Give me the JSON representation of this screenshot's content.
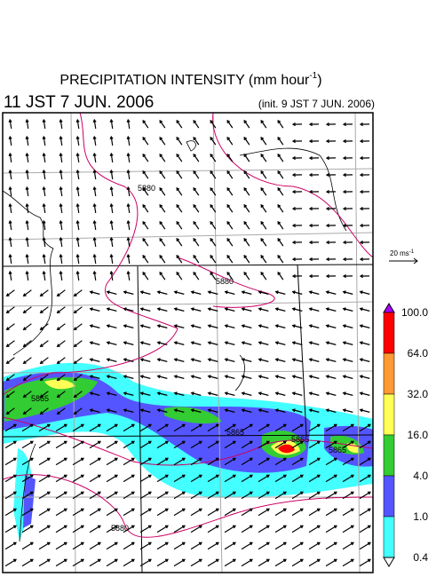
{
  "header": {
    "title": "PRECIPITATION INTENSITY (mm hour",
    "title_sup": "-1",
    "title_end": ")",
    "valid_time": "11 JST 7 JUN. 2006",
    "init_time": "(init. 9 JST 7 JUN. 2006)"
  },
  "wind_scale": {
    "label": "20 ms",
    "sup": "-1"
  },
  "colorbar": {
    "labels": [
      "100.0",
      "64.0",
      "32.0",
      "16.0",
      "4.0",
      "1.0",
      "0.4"
    ],
    "colors": [
      "#ff0000",
      "#ff9933",
      "#ffff55",
      "#33cc33",
      "#5555ff",
      "#44ffff"
    ],
    "over_color": "#aa00ff",
    "under_color": "#ffffff"
  },
  "contour_labels": [
    "5865",
    "5880",
    "5880",
    "5865",
    "5865",
    "5865",
    "5880"
  ]
}
